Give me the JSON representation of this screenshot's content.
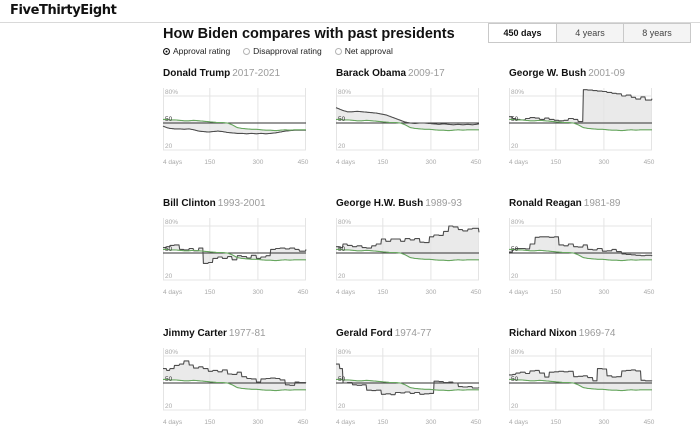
{
  "brand": {
    "logo": "FiveThirtyEight"
  },
  "header": {
    "title": "How Biden compares with past presidents",
    "metric_options": [
      {
        "label": "Approval rating",
        "selected": true
      },
      {
        "label": "Disapproval rating",
        "selected": false
      },
      {
        "label": "Net approval",
        "selected": false
      }
    ],
    "range_options": [
      {
        "label": "450 days",
        "selected": true
      },
      {
        "label": "4 years",
        "selected": false
      },
      {
        "label": "8 years",
        "selected": false
      }
    ]
  },
  "colors": {
    "biden_line": "#67a65f",
    "president_line": "#4d4d4d",
    "fill": "#eaeaea",
    "baseline": "#333333",
    "grid": "#e4e4e4",
    "tick": "#a9a9a9",
    "tick_dark": "#333333"
  },
  "chart_data": {
    "type": "line",
    "xlim": [
      4,
      450
    ],
    "ylim": [
      20,
      88
    ],
    "baseline_value": 50,
    "x_tick_days": [
      4,
      150,
      300,
      450
    ],
    "x_label_ticks": [
      "4 days",
      "150",
      "300",
      "450"
    ],
    "y_ticks": [
      {
        "label": "80%",
        "value": 80
      },
      {
        "label": "50",
        "value": 50
      },
      {
        "label": "20",
        "value": 20
      }
    ],
    "x_days": [
      4,
      15,
      25,
      40,
      55,
      70,
      85,
      100,
      115,
      130,
      145,
      160,
      175,
      190,
      205,
      220,
      235,
      250,
      265,
      280,
      295,
      310,
      325,
      340,
      355,
      370,
      385,
      400,
      415,
      430,
      450
    ],
    "overlay_series": {
      "name": "Joe Biden approval",
      "values": [
        54,
        54,
        53.5,
        53.5,
        53,
        52.5,
        52.5,
        53,
        52.5,
        52,
        51.5,
        51,
        50.5,
        50.5,
        50,
        48,
        45,
        44,
        43.5,
        43,
        43,
        42.5,
        42,
        42,
        41.5,
        42,
        42.5,
        42,
        42.5,
        42.5,
        42.5
      ]
    },
    "charts": [
      {
        "president": "Donald Trump",
        "years": "2017-2021",
        "step": false,
        "values": [
          46.5,
          45,
          44,
          43.5,
          43.5,
          43,
          43.5,
          42.5,
          41,
          40.5,
          40,
          40.5,
          41,
          40.5,
          39.5,
          39,
          38.5,
          38.5,
          38,
          38.5,
          38,
          38.5,
          38,
          38.5,
          39,
          40,
          41,
          41.5,
          42,
          42,
          42
        ]
      },
      {
        "president": "Barack Obama",
        "years": "2009-17",
        "step": false,
        "values": [
          67,
          65.5,
          64,
          62.5,
          62.5,
          63,
          62.5,
          62,
          61.5,
          61,
          60,
          59,
          57,
          55,
          53,
          51,
          50,
          49.5,
          50,
          50,
          49.5,
          49,
          48.5,
          49,
          48.5,
          48,
          48.5,
          48,
          48.5,
          48,
          49
        ]
      },
      {
        "president": "George W. Bush",
        "years": "2001-09",
        "step": true,
        "values": [
          57,
          55,
          54,
          53.5,
          55,
          56,
          55.5,
          54,
          55.5,
          54,
          53,
          52.5,
          53,
          55,
          54,
          51.5,
          87,
          86.5,
          86,
          85.5,
          85,
          84,
          83,
          82.5,
          80,
          81,
          78.5,
          76.5,
          79,
          75.5,
          77
        ]
      },
      {
        "president": "Bill Clinton",
        "years": "1993-2001",
        "step": true,
        "values": [
          56,
          57,
          58.5,
          59,
          54,
          53.5,
          55,
          52.5,
          55.5,
          38.5,
          39.5,
          44,
          45.5,
          44,
          46,
          42.5,
          47,
          46,
          44.5,
          47.5,
          44,
          45.5,
          47,
          54,
          55,
          55.5,
          54.5,
          55.5,
          54,
          52,
          54
        ]
      },
      {
        "president": "George H.W. Bush",
        "years": "1989-93",
        "step": true,
        "values": [
          57,
          56,
          60,
          58.5,
          57,
          58,
          56,
          55.5,
          58,
          60,
          65.5,
          63,
          65.5,
          65.5,
          63,
          66,
          64.5,
          66,
          62,
          61.5,
          68,
          70,
          69.5,
          74,
          80,
          79,
          76,
          74.5,
          76.5,
          77.5,
          73
        ]
      },
      {
        "president": "Ronald Reagan",
        "years": "1981-89",
        "step": true,
        "values": [
          51,
          54,
          55,
          55,
          54.5,
          60,
          67.5,
          68,
          68,
          67.5,
          68,
          59,
          58,
          60,
          57,
          56.5,
          59,
          54,
          53.5,
          55,
          52,
          52.5,
          54,
          51.5,
          49,
          48.5,
          48,
          47.5,
          47,
          47.5,
          46.5
        ]
      },
      {
        "president": "Jimmy Carter",
        "years": "1977-81",
        "step": true,
        "values": [
          66,
          64,
          66,
          69.5,
          71,
          74.5,
          70,
          66.5,
          68,
          66,
          63,
          64,
          62.5,
          64.5,
          60,
          59.5,
          62,
          57,
          55,
          54.5,
          51,
          54.5,
          55,
          55.5,
          55,
          53.5,
          48,
          47.5,
          51,
          50.5,
          50
        ]
      },
      {
        "president": "Gerald Ford",
        "years": "1974-77",
        "step": true,
        "values": [
          71,
          66,
          50,
          50.5,
          48,
          47.5,
          48,
          42,
          41.5,
          42,
          37.5,
          38,
          37,
          39.5,
          39,
          40,
          38.5,
          39.5,
          37.5,
          38,
          38.5,
          52,
          51.5,
          50.5,
          51,
          50,
          46,
          45.5,
          46,
          44.5,
          45
        ]
      },
      {
        "president": "Richard Nixon",
        "years": "1969-74",
        "step": true,
        "values": [
          59,
          59.5,
          61,
          62,
          60.5,
          63.5,
          64,
          61,
          56.5,
          62,
          62.5,
          63,
          62.5,
          63,
          57,
          57.5,
          58,
          56,
          52.5,
          66,
          65.5,
          58,
          56.5,
          57,
          63.5,
          64,
          64.5,
          63.5,
          53,
          52.5,
          52
        ]
      }
    ]
  }
}
